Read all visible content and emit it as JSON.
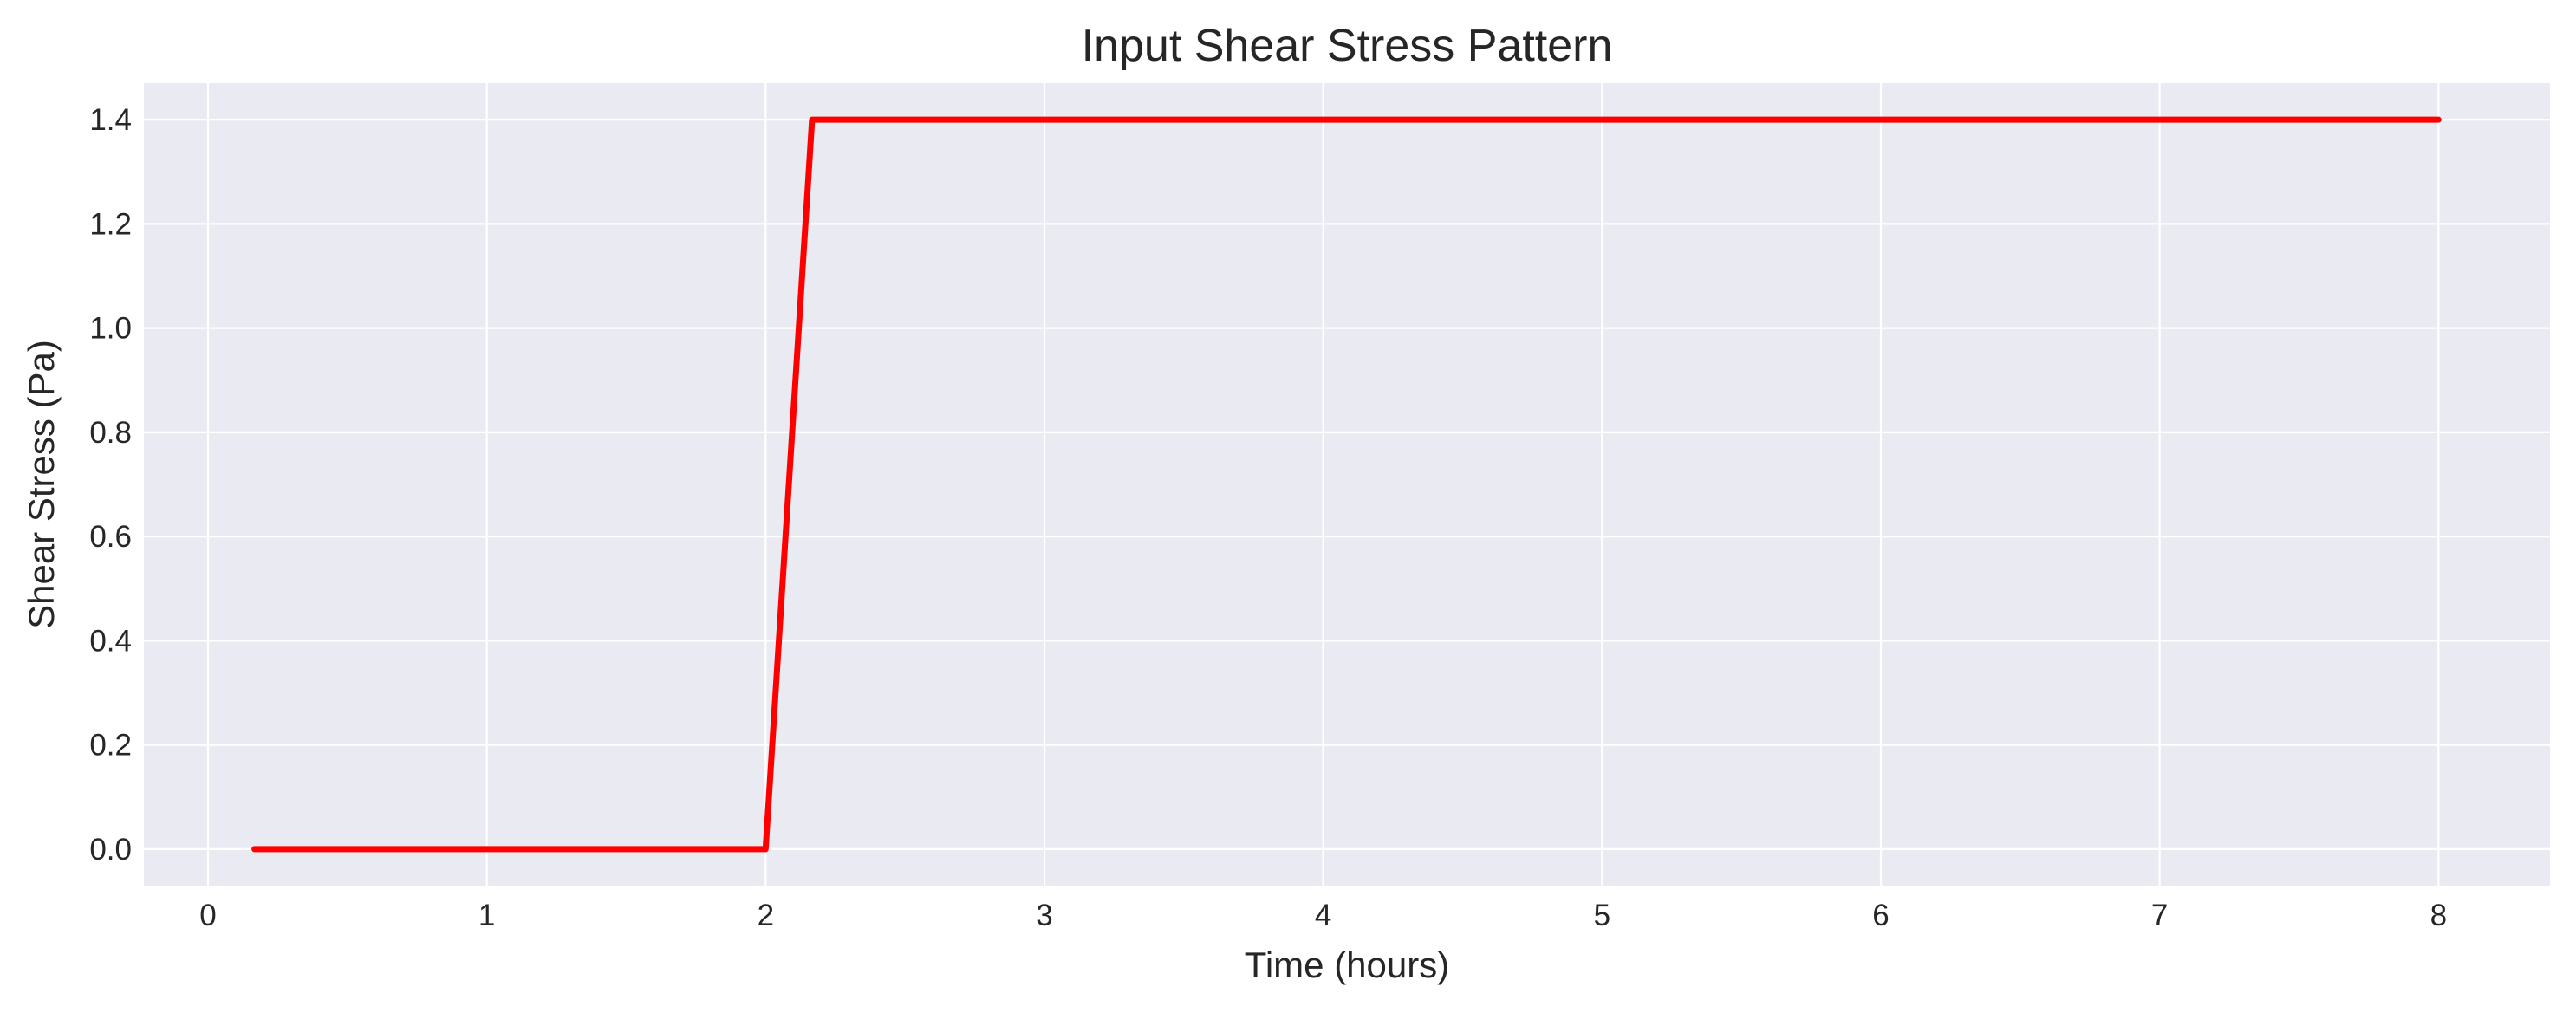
{
  "chart_data": {
    "type": "line",
    "title": "Input Shear Stress Pattern",
    "xlabel": "Time (hours)",
    "ylabel": "Shear Stress (Pa)",
    "xlim": [
      -0.23,
      8.4
    ],
    "ylim": [
      -0.07,
      1.47
    ],
    "xticks": [
      0,
      1,
      2,
      3,
      4,
      5,
      6,
      7,
      8
    ],
    "xtick_labels": [
      "0",
      "1",
      "2",
      "3",
      "4",
      "5",
      "6",
      "7",
      "8"
    ],
    "yticks": [
      0.0,
      0.2,
      0.4,
      0.6,
      0.8,
      1.0,
      1.2,
      1.4
    ],
    "ytick_labels": [
      "0.0",
      "0.2",
      "0.4",
      "0.6",
      "0.8",
      "1.0",
      "1.2",
      "1.4"
    ],
    "grid": true,
    "series": [
      {
        "color": "#ff0000",
        "x": [
          0.1667,
          2.0,
          2.1667,
          8.0
        ],
        "y": [
          0.0,
          0.0,
          1.4,
          1.4
        ]
      }
    ],
    "colors": {
      "plot_background": "#eaeaf2",
      "grid": "#ffffff",
      "text": "#262626"
    }
  }
}
